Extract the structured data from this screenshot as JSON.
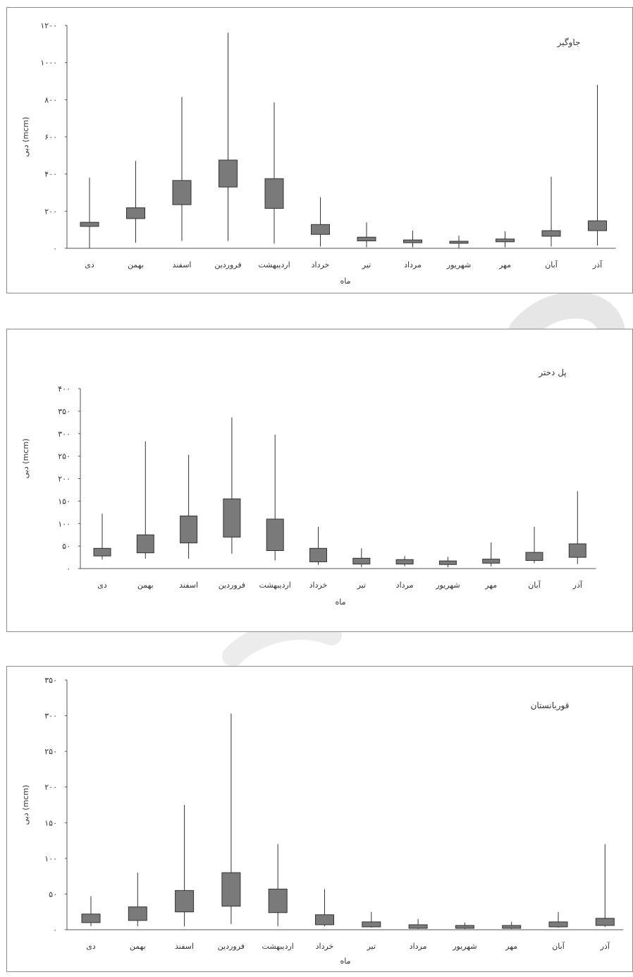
{
  "chart_data": [
    {
      "type": "boxplot",
      "title": "جاوگیر",
      "xlabel": "ماه",
      "ylabel": "دبی (mcm)",
      "ylabel_unit": "(mcm)",
      "ylabel_word": "دبی",
      "ylim": [
        0,
        1200
      ],
      "yticks": [
        0,
        200,
        400,
        600,
        800,
        1000,
        1200
      ],
      "ytick_labels": [
        "۰",
        "۲۰۰",
        "۴۰۰",
        "۶۰۰",
        "۸۰۰",
        "۱۰۰۰",
        "۱۲۰۰"
      ],
      "categories": [
        "دی",
        "بهمن",
        "اسفند",
        "فروردین",
        "اردیبهشت",
        "خرداد",
        "تیر",
        "مرداد",
        "شهریور",
        "مهر",
        "آبان",
        "آذر"
      ],
      "series": [
        {
          "min": 0,
          "q1": 118,
          "q3": 140,
          "max": 380
        },
        {
          "min": 30,
          "q1": 160,
          "q3": 218,
          "max": 470
        },
        {
          "min": 40,
          "q1": 235,
          "q3": 365,
          "max": 815
        },
        {
          "min": 40,
          "q1": 330,
          "q3": 475,
          "max": 1160
        },
        {
          "min": 25,
          "q1": 215,
          "q3": 375,
          "max": 785
        },
        {
          "min": 10,
          "q1": 75,
          "q3": 128,
          "max": 275
        },
        {
          "min": 5,
          "q1": 40,
          "q3": 60,
          "max": 140
        },
        {
          "min": 5,
          "q1": 30,
          "q3": 45,
          "max": 95
        },
        {
          "min": 0,
          "q1": 27,
          "q3": 38,
          "max": 68
        },
        {
          "min": 5,
          "q1": 35,
          "q3": 50,
          "max": 92
        },
        {
          "min": 10,
          "q1": 65,
          "q3": 95,
          "max": 385
        },
        {
          "min": 15,
          "q1": 95,
          "q3": 148,
          "max": 880
        }
      ]
    },
    {
      "type": "boxplot",
      "title": "پل دختر",
      "xlabel": "ماه",
      "ylabel": "دبی (mcm)",
      "ylabel_unit": "(mcm)",
      "ylabel_word": "دبی",
      "ylim": [
        0,
        400
      ],
      "yticks": [
        0,
        50,
        100,
        150,
        200,
        250,
        300,
        350,
        400
      ],
      "ytick_labels": [
        "۰",
        "۵۰",
        "۱۰۰",
        "۱۵۰",
        "۲۰۰",
        "۲۵۰",
        "۳۰۰",
        "۳۵۰",
        "۴۰۰"
      ],
      "categories": [
        "دی",
        "بهمن",
        "اسفند",
        "فروردین",
        "اردیبهشت",
        "خرداد",
        "تیر",
        "مرداد",
        "شهریور",
        "مهر",
        "آبان",
        "آذر"
      ],
      "series": [
        {
          "min": 20,
          "q1": 28,
          "q3": 45,
          "max": 122
        },
        {
          "min": 22,
          "q1": 35,
          "q3": 75,
          "max": 283
        },
        {
          "min": 22,
          "q1": 57,
          "q3": 117,
          "max": 253
        },
        {
          "min": 33,
          "q1": 70,
          "q3": 155,
          "max": 336
        },
        {
          "min": 18,
          "q1": 40,
          "q3": 110,
          "max": 298
        },
        {
          "min": 8,
          "q1": 15,
          "q3": 45,
          "max": 93
        },
        {
          "min": 3,
          "q1": 10,
          "q3": 23,
          "max": 45
        },
        {
          "min": 5,
          "q1": 10,
          "q3": 20,
          "max": 28
        },
        {
          "min": 3,
          "q1": 9,
          "q3": 17,
          "max": 26
        },
        {
          "min": 5,
          "q1": 12,
          "q3": 21,
          "max": 58
        },
        {
          "min": 12,
          "q1": 18,
          "q3": 36,
          "max": 93
        },
        {
          "min": 10,
          "q1": 25,
          "q3": 55,
          "max": 172
        }
      ]
    },
    {
      "type": "boxplot",
      "title": "قوربانستان",
      "xlabel": "ماه",
      "ylabel": "دبی (mcm)",
      "ylabel_unit": "(mcm)",
      "ylabel_word": "دبی",
      "ylim": [
        0,
        350
      ],
      "yticks": [
        0,
        50,
        100,
        150,
        200,
        250,
        300,
        350
      ],
      "ytick_labels": [
        "۰",
        "۵۰",
        "۱۰۰",
        "۱۵۰",
        "۲۰۰",
        "۲۵۰",
        "۳۰۰",
        "۳۵۰"
      ],
      "categories": [
        "دی",
        "بهمن",
        "اسفند",
        "فروردین",
        "اردیبهشت",
        "خرداد",
        "تیر",
        "مرداد",
        "شهریور",
        "مهر",
        "آبان",
        "آذر"
      ],
      "series": [
        {
          "min": 5,
          "q1": 10,
          "q3": 22,
          "max": 47
        },
        {
          "min": 5,
          "q1": 13,
          "q3": 32,
          "max": 80
        },
        {
          "min": 5,
          "q1": 25,
          "q3": 55,
          "max": 175
        },
        {
          "min": 8,
          "q1": 33,
          "q3": 80,
          "max": 303
        },
        {
          "min": 5,
          "q1": 24,
          "q3": 57,
          "max": 120
        },
        {
          "min": 5,
          "q1": 7,
          "q3": 21,
          "max": 57
        },
        {
          "min": 3,
          "q1": 4,
          "q3": 11,
          "max": 25
        },
        {
          "min": 1,
          "q1": 2,
          "q3": 7,
          "max": 15
        },
        {
          "min": 1,
          "q1": 2,
          "q3": 6,
          "max": 10
        },
        {
          "min": 1,
          "q1": 2,
          "q3": 6,
          "max": 11
        },
        {
          "min": 3,
          "q1": 4,
          "q3": 11,
          "max": 25
        },
        {
          "min": 4,
          "q1": 6,
          "q3": 16,
          "max": 120
        }
      ]
    }
  ]
}
